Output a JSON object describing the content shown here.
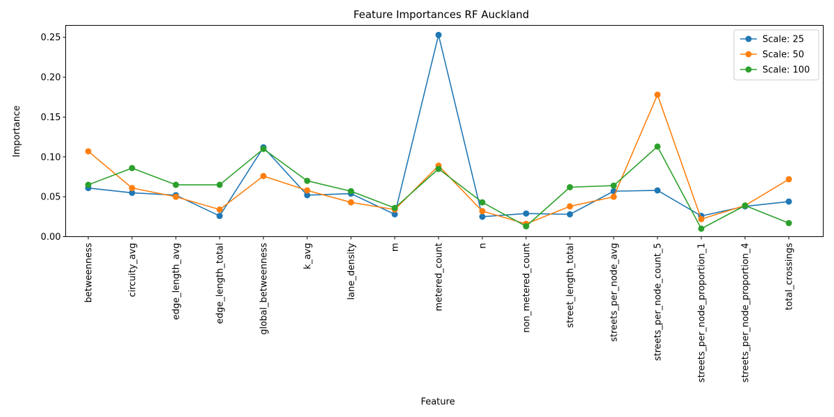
{
  "chart_data": {
    "type": "line",
    "title": "Feature Importances RF Auckland",
    "xlabel": "Feature",
    "ylabel": "Importance",
    "categories": [
      "betweenness",
      "circuity_avg",
      "edge_length_avg",
      "edge_length_total",
      "global_betweenness",
      "k_avg",
      "lane_density",
      "m",
      "metered_count",
      "n",
      "non_metered_count",
      "street_length_total",
      "streets_per_node_avg",
      "streets_per_node_count_5",
      "streets_per_node_proportion_1",
      "streets_per_node_proportion_4",
      "total_crossings"
    ],
    "ylim": [
      0,
      0.265
    ],
    "yticks": [
      0.0,
      0.05,
      0.1,
      0.15,
      0.2,
      0.25
    ],
    "ytick_labels": [
      "0.00",
      "0.05",
      "0.10",
      "0.15",
      "0.20",
      "0.25"
    ],
    "grid": false,
    "legend_position": "top-right",
    "series": [
      {
        "name": "Scale: 25",
        "color": "#1f77b4",
        "values": [
          0.061,
          0.055,
          0.052,
          0.026,
          0.112,
          0.052,
          0.054,
          0.028,
          0.253,
          0.025,
          0.029,
          0.028,
          0.057,
          0.058,
          0.026,
          0.038,
          0.044
        ]
      },
      {
        "name": "Scale: 50",
        "color": "#ff7f0e",
        "values": [
          0.107,
          0.061,
          0.05,
          0.034,
          0.076,
          0.058,
          0.043,
          0.034,
          0.089,
          0.032,
          0.016,
          0.038,
          0.05,
          0.178,
          0.022,
          0.039,
          0.072
        ]
      },
      {
        "name": "Scale: 100",
        "color": "#2ca02c",
        "values": [
          0.065,
          0.086,
          0.065,
          0.065,
          0.11,
          0.07,
          0.057,
          0.036,
          0.085,
          0.043,
          0.013,
          0.062,
          0.064,
          0.113,
          0.01,
          0.039,
          0.017
        ]
      }
    ]
  }
}
